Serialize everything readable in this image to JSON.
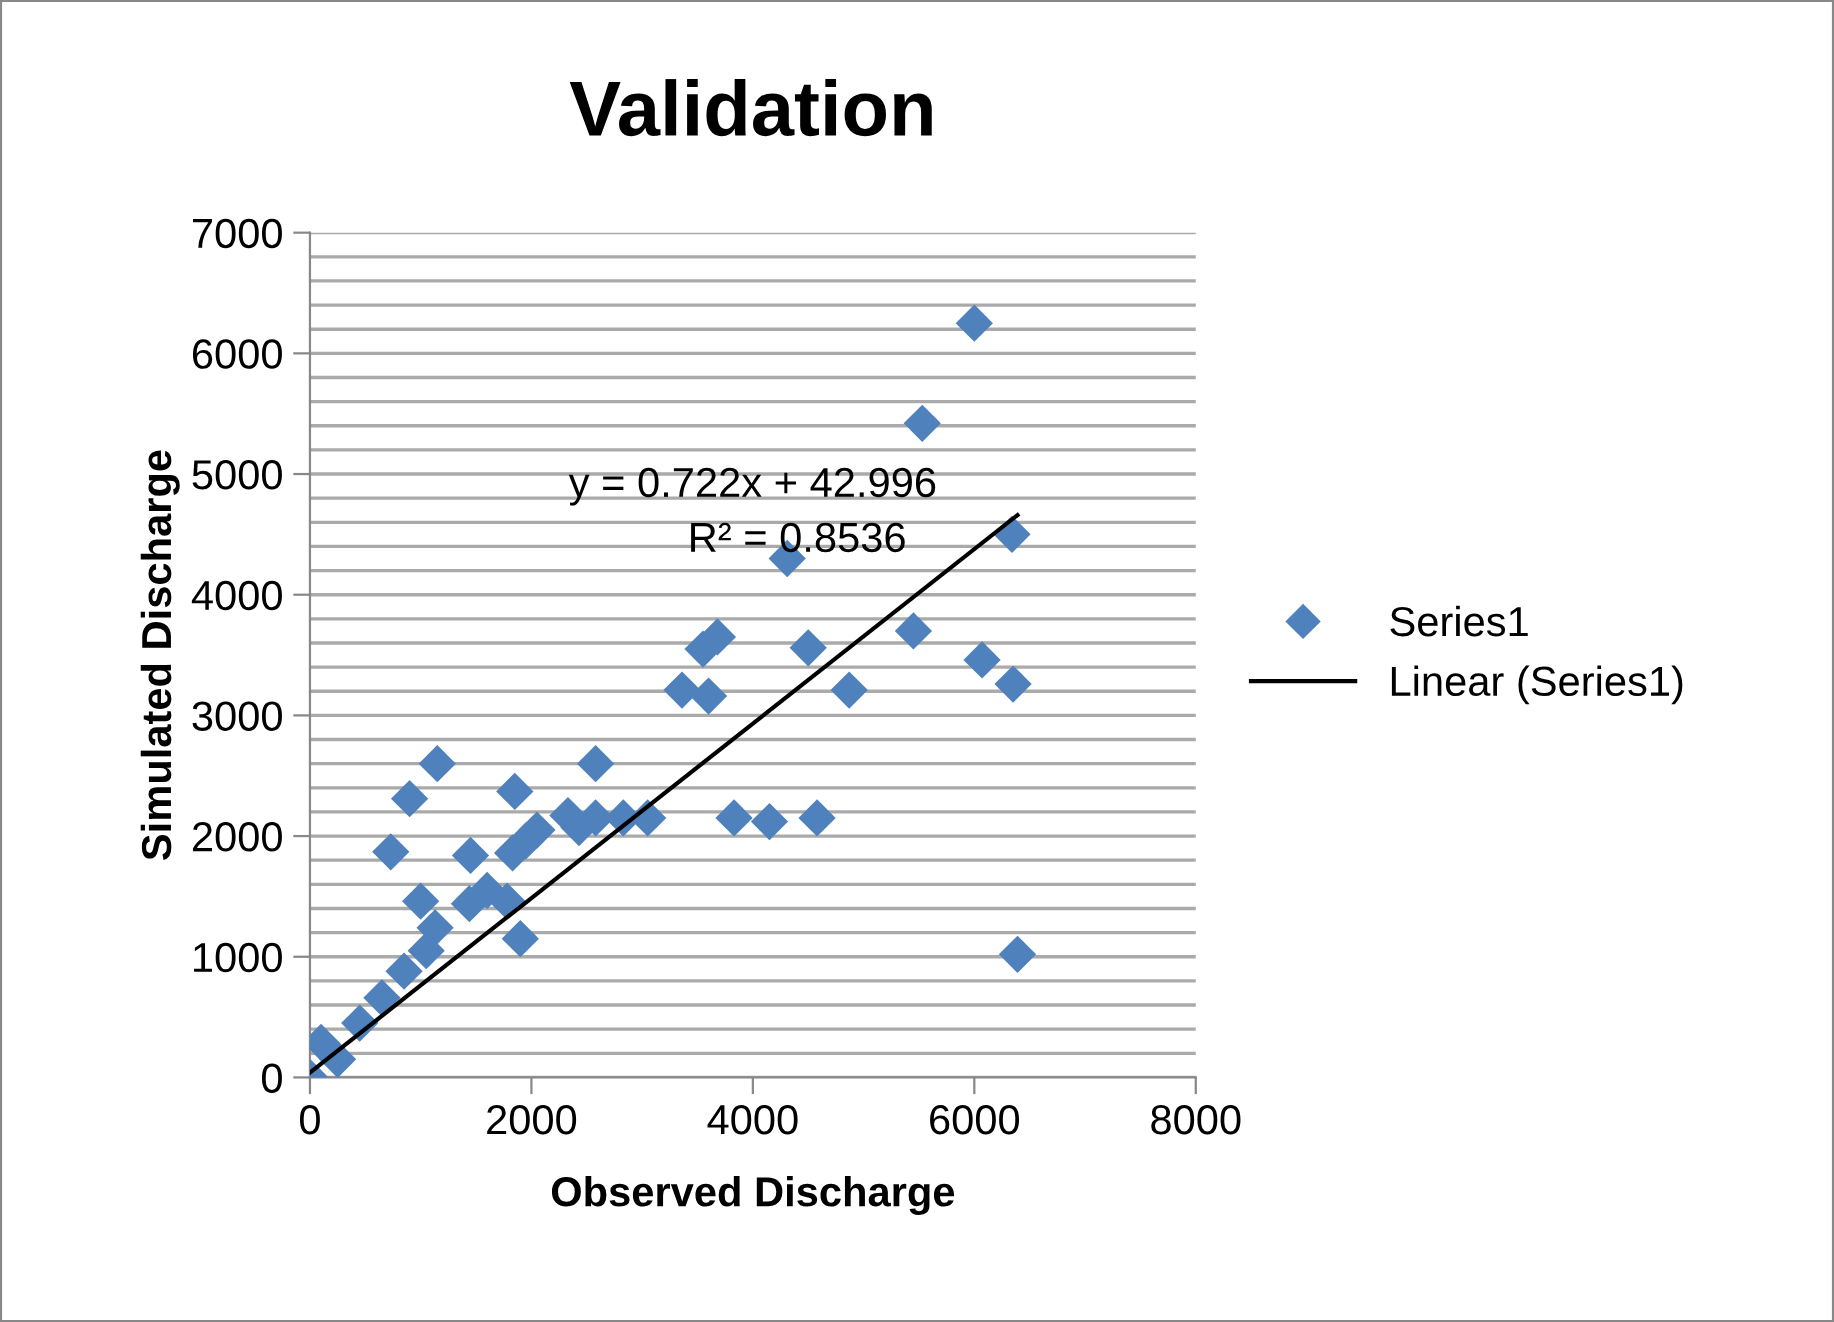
{
  "chart_data": {
    "type": "scatter",
    "title": "Validation",
    "xlabel": "Observed Discharge",
    "ylabel": "Simulated Discharge",
    "xlim": [
      0,
      8000
    ],
    "xticks": [
      0,
      2000,
      4000,
      6000,
      8000
    ],
    "ylim": [
      0,
      7000
    ],
    "yticks": [
      0,
      {
        "value": 200,
        "label": null
      },
      {
        "value": 400,
        "label": null
      },
      {
        "value": 600,
        "label": null
      },
      {
        "value": 800,
        "label": null
      },
      1000,
      {
        "value": 1200,
        "label": null
      },
      {
        "value": 1400,
        "label": null
      },
      {
        "value": 1600,
        "label": null
      },
      {
        "value": 1800,
        "label": null
      },
      2000,
      {
        "value": 2200,
        "label": null
      },
      {
        "value": 2400,
        "label": null
      },
      {
        "value": 2600,
        "label": null
      },
      {
        "value": 2800,
        "label": null
      },
      3000,
      {
        "value": 3200,
        "label": null
      },
      {
        "value": 3400,
        "label": null
      },
      {
        "value": 3600,
        "label": null
      },
      {
        "value": 3800,
        "label": null
      },
      4000,
      {
        "value": 4200,
        "label": null
      },
      {
        "value": 4400,
        "label": null
      },
      {
        "value": 4600,
        "label": null
      },
      {
        "value": 4800,
        "label": null
      },
      5000,
      {
        "value": 5200,
        "label": null
      },
      {
        "value": 5400,
        "label": null
      },
      {
        "value": 5600,
        "label": null
      },
      {
        "value": 5800,
        "label": null
      },
      6000,
      {
        "value": 6200,
        "label": null
      },
      {
        "value": 6400,
        "label": null
      },
      {
        "value": 6600,
        "label": null
      },
      {
        "value": 6800,
        "label": null
      },
      7000
    ],
    "grid": "y",
    "legend": "right",
    "marker": "diamond",
    "annotations": [
      "y = 0.722x + 42.996",
      "R² = 0.8536"
    ],
    "series": [
      {
        "name": "Series1",
        "type": "scatter",
        "color": "#4f81bd",
        "x": [
          6000,
          5530,
          6340,
          4310,
          5450,
          4500,
          3680,
          3550,
          3360,
          3600,
          6070,
          6350,
          4870,
          3830,
          4150,
          4580,
          6390,
          1150,
          900,
          730,
          1000,
          1130,
          1450,
          1440,
          1600,
          1780,
          1900,
          1850,
          1830,
          1950,
          2050,
          2580,
          2330,
          2430,
          2580,
          2830,
          3050,
          0,
          100,
          250,
          450,
          650,
          850,
          1050
        ],
        "values": [
          6250,
          5420,
          4500,
          4300,
          3700,
          3560,
          3650,
          3550,
          3210,
          3160,
          3460,
          3260,
          3210,
          2150,
          2120,
          2150,
          1020,
          2600,
          2310,
          1870,
          1460,
          1240,
          1840,
          1440,
          1550,
          1460,
          1150,
          2370,
          1860,
          1960,
          2050,
          2600,
          2170,
          2070,
          2150,
          2150,
          2150,
          0,
          290,
          150,
          450,
          660,
          880,
          1050
        ]
      },
      {
        "name": "Linear (Series1)",
        "type": "line",
        "color": "#000000",
        "marker": "none",
        "x": [
          0,
          6390
        ],
        "values": [
          40,
          4660
        ]
      }
    ]
  }
}
